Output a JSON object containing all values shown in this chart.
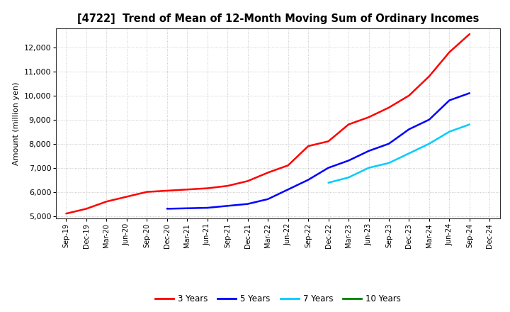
{
  "title": "[4722]  Trend of Mean of 12-Month Moving Sum of Ordinary Incomes",
  "ylabel": "Amount (million yen)",
  "ylim": [
    4900,
    12800
  ],
  "yticks": [
    5000,
    6000,
    7000,
    8000,
    9000,
    10000,
    11000,
    12000
  ],
  "background_color": "#ffffff",
  "grid_color": "#aaaaaa",
  "series": {
    "3 Years": {
      "color": "#ff0000",
      "x_labels": [
        "Sep-19",
        "Dec-19",
        "Mar-20",
        "Jun-20",
        "Sep-20",
        "Dec-20",
        "Mar-21",
        "Jun-21",
        "Sep-21",
        "Dec-21",
        "Mar-22",
        "Jun-22",
        "Sep-22",
        "Dec-22",
        "Mar-23",
        "Jun-23",
        "Sep-23",
        "Dec-23",
        "Mar-24",
        "Jun-24",
        "Sep-24"
      ],
      "y": [
        5100,
        5300,
        5600,
        5800,
        6000,
        6050,
        6100,
        6150,
        6250,
        6450,
        6800,
        7100,
        7900,
        8100,
        8800,
        9100,
        9500,
        10000,
        10800,
        11800,
        12550
      ]
    },
    "5 Years": {
      "color": "#0000ff",
      "x_labels": [
        "Dec-20",
        "Mar-21",
        "Jun-21",
        "Sep-21",
        "Dec-21",
        "Mar-22",
        "Jun-22",
        "Sep-22",
        "Dec-22",
        "Mar-23",
        "Jun-23",
        "Sep-23",
        "Dec-23",
        "Mar-24",
        "Jun-24",
        "Sep-24"
      ],
      "y": [
        5300,
        5320,
        5340,
        5420,
        5500,
        5700,
        6100,
        6500,
        7000,
        7300,
        7700,
        8000,
        8600,
        9000,
        9800,
        10100
      ]
    },
    "7 Years": {
      "color": "#00ccff",
      "x_labels": [
        "Dec-22",
        "Mar-23",
        "Jun-23",
        "Sep-23",
        "Dec-23",
        "Mar-24",
        "Jun-24",
        "Sep-24"
      ],
      "y": [
        6380,
        6600,
        7000,
        7200,
        7600,
        8000,
        8500,
        8800
      ]
    },
    "10 Years": {
      "color": "#008000",
      "x_labels": [],
      "y": []
    }
  },
  "legend_labels": [
    "3 Years",
    "5 Years",
    "7 Years",
    "10 Years"
  ],
  "legend_colors": [
    "#ff0000",
    "#0000ff",
    "#00ccff",
    "#008000"
  ]
}
